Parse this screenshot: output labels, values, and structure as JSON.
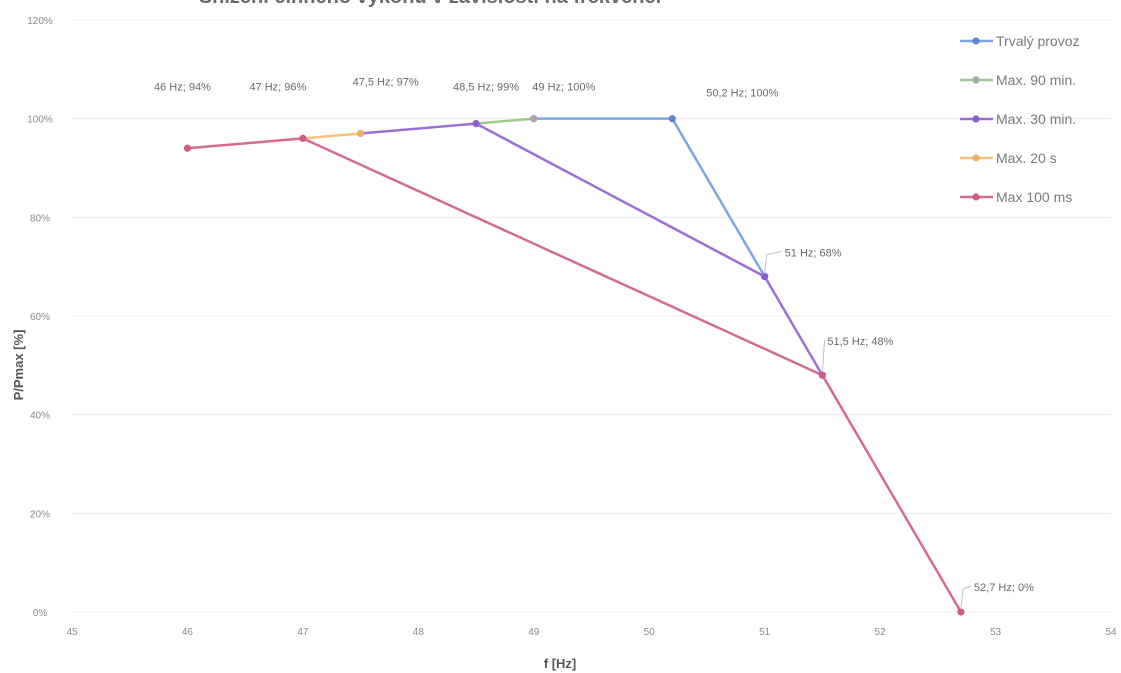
{
  "chart_data": {
    "type": "line",
    "title": "Snížení činného výkonu v závislosti na frekvenci",
    "xlabel": "f [Hz]",
    "ylabel": "P/Pmax [%]",
    "xlim": [
      45,
      54
    ],
    "ylim": [
      0,
      120
    ],
    "x_ticks": [
      "45",
      "46",
      "47",
      "48",
      "49",
      "50",
      "51",
      "52",
      "53",
      "54"
    ],
    "y_ticks": [
      "0%",
      "20%",
      "40%",
      "60%",
      "80%",
      "100%",
      "120%"
    ],
    "grid": "horizontal",
    "legend_position": "top-right",
    "series": [
      {
        "name": "Trvalý provoz",
        "color": "#7fa6e2",
        "x": [
          49,
          50.2,
          51
        ],
        "y": [
          100,
          100,
          68
        ]
      },
      {
        "name": "Max. 90 min.",
        "color": "#9fc98a",
        "x": [
          48.5,
          49
        ],
        "y": [
          99,
          100
        ]
      },
      {
        "name": "Max. 30 min.",
        "color": "#9b6fd8",
        "x": [
          47.5,
          48.5,
          51,
          51.5
        ],
        "y": [
          97,
          99,
          68,
          48
        ]
      },
      {
        "name": "Max. 20 s",
        "color": "#f6c27c",
        "x": [
          47,
          47.5
        ],
        "y": [
          96,
          97
        ]
      },
      {
        "name": "Max 100 ms",
        "color": "#d76a92",
        "x": [
          46,
          47,
          51.5,
          52.7
        ],
        "y": [
          94,
          96,
          48,
          0
        ]
      }
    ],
    "legend_markers": [
      "#5b86d6",
      "#a8a8a8",
      "#8e5ccf",
      "#f0b060",
      "#cf5b86"
    ],
    "annotations": [
      {
        "text": "46 Hz; 94%",
        "x": 46,
        "y": 94
      },
      {
        "text": "47 Hz; 96%",
        "x": 47,
        "y": 96
      },
      {
        "text": "47,5 Hz; 97%",
        "x": 47.5,
        "y": 97
      },
      {
        "text": "48,5 Hz; 99%",
        "x": 48.5,
        "y": 99
      },
      {
        "text": "49 Hz; 100%",
        "x": 49,
        "y": 100
      },
      {
        "text": "50,2 Hz; 100%",
        "x": 50.2,
        "y": 100
      },
      {
        "text": "51 Hz; 68%",
        "x": 51,
        "y": 68
      },
      {
        "text": "51,5 Hz; 48%",
        "x": 51.5,
        "y": 48
      },
      {
        "text": "52,7 Hz; 0%",
        "x": 52.7,
        "y": 0
      }
    ]
  }
}
